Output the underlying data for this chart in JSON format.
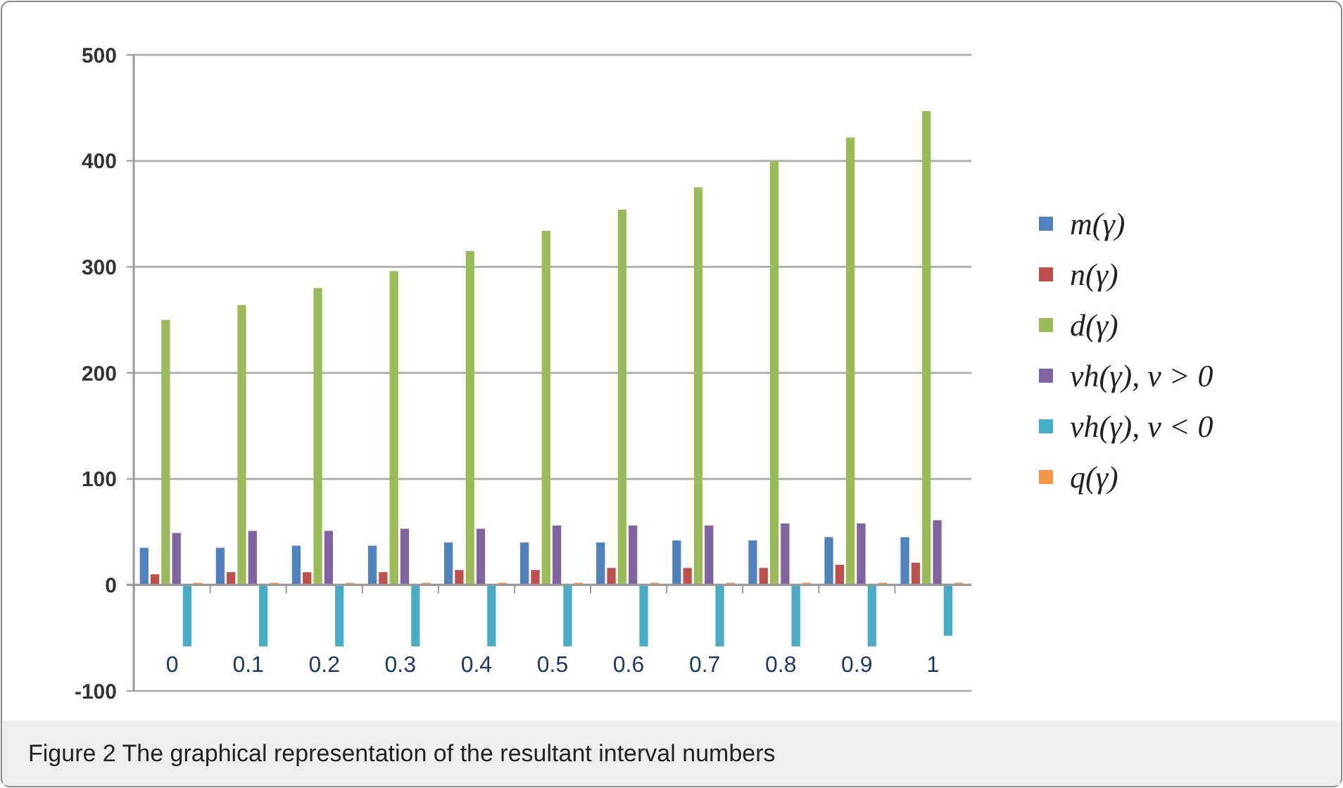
{
  "chart_data": {
    "type": "bar",
    "title": "Figure 2  The graphical representation of the resultant interval numbers",
    "categories": [
      "0",
      "0.1",
      "0.2",
      "0.3",
      "0.4",
      "0.5",
      "0.6",
      "0.7",
      "0.8",
      "0.9",
      "1"
    ],
    "series": [
      {
        "name": "m(γ)",
        "color": "#4f81bd",
        "values": [
          35,
          35,
          37,
          37,
          40,
          40,
          40,
          42,
          42,
          45,
          45
        ]
      },
      {
        "name": "n(γ)",
        "color": "#c0504d",
        "values": [
          10,
          12,
          12,
          12,
          14,
          14,
          16,
          16,
          16,
          19,
          21
        ]
      },
      {
        "name": "d(γ)",
        "color": "#9bbb59",
        "values": [
          250,
          264,
          280,
          296,
          315,
          334,
          354,
          375,
          400,
          422,
          447
        ]
      },
      {
        "name": "vh(γ), v > 0",
        "color": "#8064a2",
        "values": [
          49,
          51,
          51,
          53,
          53,
          56,
          56,
          56,
          58,
          58,
          61
        ]
      },
      {
        "name": "vh(γ), v < 0",
        "color": "#4bacc6",
        "values": [
          -58,
          -58,
          -58,
          -58,
          -58,
          -58,
          -58,
          -58,
          -58,
          -58,
          -48
        ]
      },
      {
        "name": "q(γ)",
        "color": "#f79646",
        "values": [
          2,
          2,
          2,
          2,
          2,
          2,
          2,
          2,
          2,
          2,
          2
        ]
      }
    ],
    "ylim": [
      -100,
      500
    ],
    "yticks": [
      -100,
      0,
      100,
      200,
      300,
      400,
      500
    ],
    "grid": "y",
    "legend": "right"
  }
}
